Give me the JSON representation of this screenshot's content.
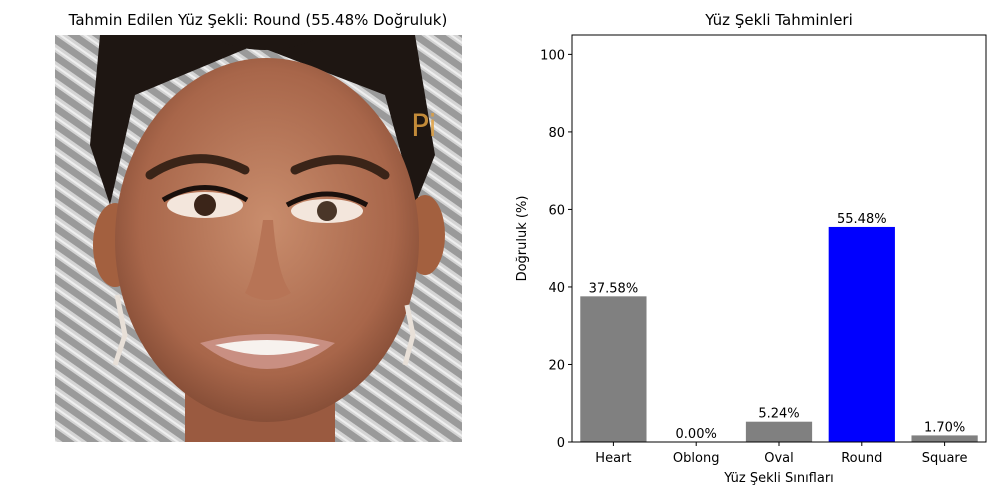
{
  "left_panel": {
    "title": "Tahmin Edilen Yüz Şekli: Round (55.48% Doğruluk)",
    "image_subject": "face-photo",
    "watermark_text": "Pi"
  },
  "chart_data": {
    "type": "bar",
    "title": "Yüz Şekli Tahminleri",
    "xlabel": "Yüz Şekli Sınıfları",
    "ylabel": "Doğruluk (%)",
    "categories": [
      "Heart",
      "Oblong",
      "Oval",
      "Round",
      "Square"
    ],
    "values": [
      37.58,
      0.0,
      5.24,
      55.48,
      1.7
    ],
    "data_labels": [
      "37.58%",
      "0.00%",
      "5.24%",
      "55.48%",
      "1.70%"
    ],
    "colors": [
      "#808080",
      "#808080",
      "#808080",
      "#0000ff",
      "#808080"
    ],
    "ylim": [
      0,
      105
    ],
    "yticks": [
      0,
      20,
      40,
      60,
      80,
      100
    ],
    "grid": false
  }
}
